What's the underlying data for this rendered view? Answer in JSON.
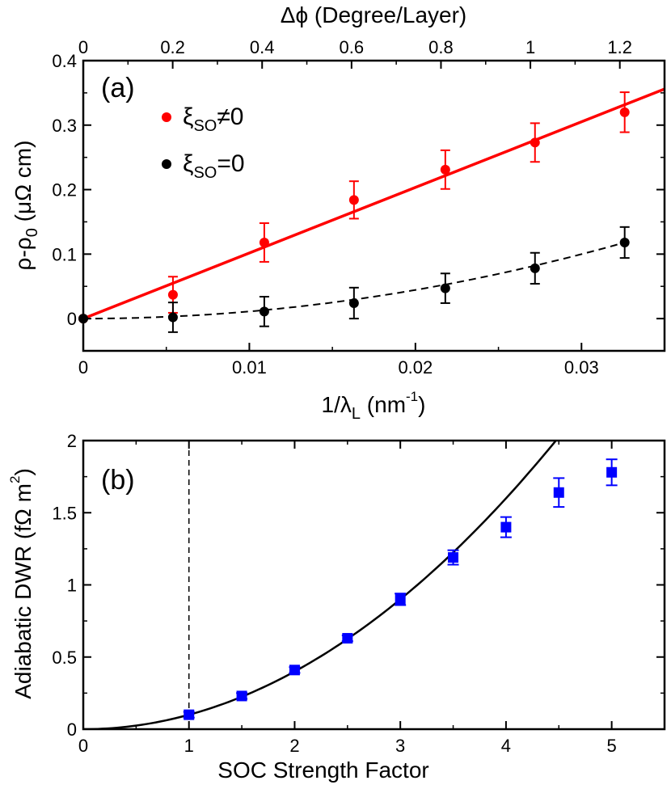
{
  "chart_data": [
    {
      "panel": "(a)",
      "type": "scatter",
      "xlabel_top": "Δϕ (Degree/Layer)",
      "xlim_top": [
        0,
        1.3
      ],
      "xticks_top": [
        "0",
        "0.2",
        "0.4",
        "0.6",
        "0.8",
        "1",
        "1.2"
      ],
      "xlabel": {
        "main": "1/λ",
        "sub": "L",
        "unit_open": " (nm",
        "sup": "-1",
        "unit_close": ")"
      },
      "xlim": [
        0,
        0.035
      ],
      "xticks": [
        "0",
        "0.01",
        "0.02",
        "0.03"
      ],
      "ylabel": {
        "main": "ρ-ρ",
        "sub": "0",
        "unit": " (μΩ cm)"
      },
      "ylim": [
        -0.05,
        0.4
      ],
      "yticks": [
        "0",
        "0.1",
        "0.2",
        "0.3",
        "0.4"
      ],
      "series": [
        {
          "name": "ξ_SO≠0",
          "legend": {
            "main": "ξ",
            "sub": "SO",
            "rel": "≠0"
          },
          "color": "#ff0000",
          "x": [
            0,
            0.0054,
            0.0109,
            0.0163,
            0.0218,
            0.0272,
            0.0326
          ],
          "y": [
            0,
            0.037,
            0.118,
            0.184,
            0.231,
            0.273,
            0.32
          ],
          "err": [
            0,
            0.028,
            0.03,
            0.029,
            0.03,
            0.03,
            0.031
          ],
          "fit": {
            "style": "solid",
            "kind": "linear",
            "x": [
              0,
              0.035
            ],
            "y": [
              0,
              0.356
            ]
          }
        },
        {
          "name": "ξ_SO=0",
          "legend": {
            "main": "ξ",
            "sub": "SO",
            "rel": "=0"
          },
          "color": "#000000",
          "x": [
            0,
            0.0054,
            0.0109,
            0.0163,
            0.0218,
            0.0272,
            0.0326
          ],
          "y": [
            0,
            0.002,
            0.011,
            0.024,
            0.047,
            0.078,
            0.118
          ],
          "err": [
            0,
            0.023,
            0.023,
            0.024,
            0.023,
            0.024,
            0.024
          ],
          "fit": {
            "style": "dashed",
            "kind": "quadratic",
            "coeff": 111
          }
        }
      ]
    },
    {
      "panel": "(b)",
      "type": "scatter",
      "xlabel": "SOC Strength Factor",
      "xlim": [
        0,
        5.5
      ],
      "xticks": [
        "0",
        "1",
        "2",
        "3",
        "4",
        "5"
      ],
      "ylabel": {
        "main": "Adiabatic DWR (fΩ m",
        "sup": "2",
        "close": ")"
      },
      "ylim": [
        0,
        2
      ],
      "yticks": [
        "0",
        "0.5",
        "1",
        "1.5",
        "2"
      ],
      "vline_x": 1,
      "series": [
        {
          "name": "Adiabatic DWR",
          "color": "#0000ff",
          "marker": "square",
          "x": [
            1,
            1.5,
            2,
            2.5,
            3,
            3.5,
            4,
            4.5,
            5
          ],
          "y": [
            0.1,
            0.23,
            0.41,
            0.63,
            0.9,
            1.19,
            1.4,
            1.64,
            1.78
          ],
          "err": [
            0.02,
            0.02,
            0.02,
            0.02,
            0.04,
            0.05,
            0.07,
            0.1,
            0.09
          ]
        }
      ],
      "fit": {
        "style": "solid",
        "kind": "power",
        "coeff": 0.1,
        "exponent": 2
      }
    }
  ]
}
